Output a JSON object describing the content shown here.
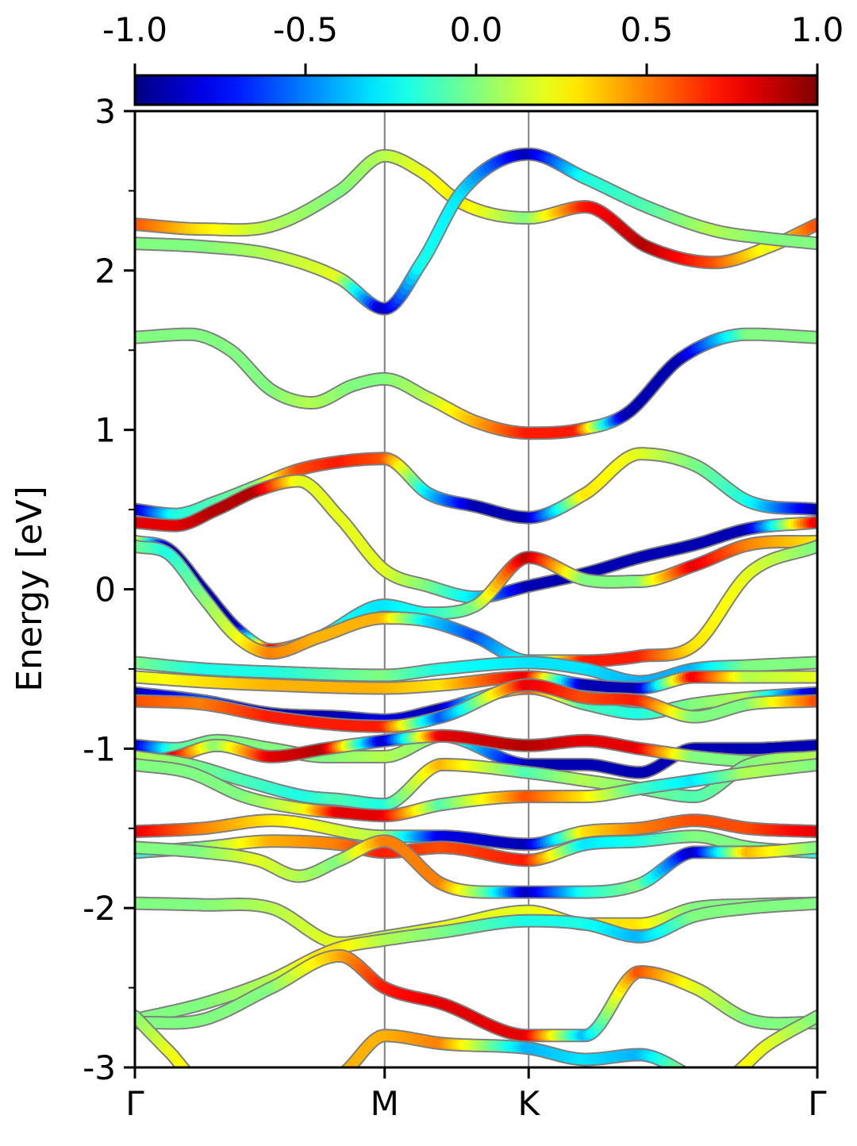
{
  "chart_data": {
    "type": "line",
    "ylabel": "Energy [eV]",
    "ylim": [
      -3,
      3
    ],
    "yticks": [
      -3,
      -2,
      -1,
      0,
      1,
      2,
      3
    ],
    "ytick_labels": [
      "-3",
      "-2",
      "-1",
      "0",
      "1",
      "2",
      "3"
    ],
    "yminor_ticks": [
      -2.5,
      -1.5,
      -0.5,
      0.5,
      1.5,
      2.5
    ],
    "kpath": {
      "labels": [
        "Γ",
        "M",
        "K",
        "Γ"
      ],
      "positions": [
        0,
        0.366,
        0.577,
        1.0
      ]
    },
    "colorbar": {
      "colormap": "jet",
      "range": [
        -1.0,
        1.0
      ],
      "ticks": [
        -1.0,
        -0.5,
        0.0,
        0.5,
        1.0
      ],
      "tick_labels": [
        "-1.0",
        "-0.5",
        "0.0",
        "0.5",
        "1.0"
      ],
      "position": "top"
    },
    "band_outline_color": "#7f7f7f",
    "kline_color": "#808080",
    "series": [
      {
        "x": [
          0,
          0.1,
          0.2,
          0.3,
          0.366,
          0.42,
          0.48,
          0.577,
          0.66,
          0.75,
          0.85,
          0.93,
          1.0
        ],
        "y": [
          2.29,
          2.26,
          2.28,
          2.5,
          2.72,
          2.62,
          2.42,
          2.33,
          2.4,
          2.15,
          2.05,
          2.15,
          2.29
        ],
        "c": [
          0.6,
          0.3,
          0.1,
          0.0,
          0.1,
          0.2,
          0.3,
          0.0,
          0.7,
          0.9,
          0.6,
          0.2,
          0.6
        ]
      },
      {
        "x": [
          0,
          0.1,
          0.2,
          0.3,
          0.366,
          0.42,
          0.48,
          0.577,
          0.66,
          0.75,
          0.85,
          0.93,
          1.0
        ],
        "y": [
          2.17,
          2.15,
          2.1,
          1.95,
          1.76,
          2.05,
          2.5,
          2.73,
          2.58,
          2.4,
          2.25,
          2.2,
          2.17
        ],
        "c": [
          0.0,
          0.0,
          0.1,
          0.2,
          -0.9,
          -0.2,
          -0.3,
          -0.9,
          -0.2,
          -0.1,
          0.1,
          0.0,
          0.0
        ]
      },
      {
        "x": [
          0,
          0.08,
          0.14,
          0.2,
          0.26,
          0.32,
          0.366,
          0.43,
          0.5,
          0.577,
          0.65,
          0.72,
          0.8,
          0.9,
          1.0
        ],
        "y": [
          1.58,
          1.6,
          1.5,
          1.25,
          1.17,
          1.28,
          1.32,
          1.2,
          1.05,
          0.98,
          1.0,
          1.1,
          1.45,
          1.6,
          1.58
        ],
        "c": [
          0.0,
          0.0,
          0.0,
          0.0,
          0.1,
          0.0,
          0.0,
          0.1,
          0.4,
          0.7,
          0.7,
          -0.9,
          -0.9,
          0.0,
          0.0
        ]
      },
      {
        "x": [
          0,
          0.06,
          0.12,
          0.18,
          0.24,
          0.3,
          0.366,
          0.43,
          0.5,
          0.577,
          0.66,
          0.74,
          0.82,
          0.9,
          1.0
        ],
        "y": [
          0.5,
          0.47,
          0.55,
          0.65,
          0.75,
          0.8,
          0.82,
          0.6,
          0.52,
          0.45,
          0.6,
          0.85,
          0.78,
          0.55,
          0.5
        ],
        "c": [
          -0.9,
          -0.2,
          -0.1,
          0.0,
          0.6,
          0.7,
          0.6,
          -0.3,
          -0.9,
          -0.9,
          0.3,
          0.2,
          0.0,
          -0.2,
          -0.9
        ]
      },
      {
        "x": [
          0,
          0.06,
          0.12,
          0.18,
          0.24,
          0.3,
          0.366,
          0.43,
          0.5,
          0.577,
          0.66,
          0.74,
          0.82,
          0.9,
          1.0
        ],
        "y": [
          0.42,
          0.4,
          0.5,
          0.62,
          0.68,
          0.45,
          0.12,
          0.02,
          -0.05,
          0.02,
          0.1,
          0.2,
          0.28,
          0.38,
          0.42
        ],
        "c": [
          0.8,
          0.8,
          0.9,
          0.9,
          0.2,
          0.2,
          0.2,
          0.0,
          -0.3,
          -0.9,
          -0.9,
          -0.9,
          -0.9,
          -0.9,
          0.8
        ]
      },
      {
        "x": [
          0,
          0.05,
          0.1,
          0.15,
          0.2,
          0.27,
          0.366,
          0.43,
          0.5,
          0.577,
          0.66,
          0.74,
          0.82,
          0.9,
          1.0
        ],
        "y": [
          0.3,
          0.25,
          0.0,
          -0.25,
          -0.38,
          -0.3,
          -0.1,
          -0.15,
          -0.1,
          0.2,
          0.06,
          0.05,
          0.15,
          0.28,
          0.3
        ],
        "c": [
          0.3,
          -0.9,
          -0.9,
          -0.9,
          0.8,
          -0.2,
          -0.3,
          -0.2,
          0.0,
          0.9,
          0.0,
          0.0,
          0.8,
          0.5,
          0.3
        ]
      },
      {
        "x": [
          0,
          0.05,
          0.1,
          0.15,
          0.2,
          0.27,
          0.366,
          0.43,
          0.5,
          0.577,
          0.66,
          0.74,
          0.82,
          0.9,
          1.0
        ],
        "y": [
          0.27,
          0.22,
          -0.05,
          -0.3,
          -0.4,
          -0.3,
          -0.18,
          -0.2,
          -0.3,
          -0.45,
          -0.45,
          -0.42,
          -0.35,
          0.1,
          0.27
        ],
        "c": [
          0.0,
          -0.2,
          0.0,
          0.2,
          0.5,
          0.4,
          0.4,
          -0.3,
          -0.6,
          -0.2,
          0.7,
          0.7,
          0.3,
          0.2,
          0.0
        ]
      },
      {
        "x": [
          0,
          0.1,
          0.2,
          0.366,
          0.45,
          0.577,
          0.66,
          0.74,
          0.82,
          0.9,
          1.0
        ],
        "y": [
          -0.46,
          -0.5,
          -0.52,
          -0.54,
          -0.5,
          -0.46,
          -0.5,
          -0.58,
          -0.5,
          -0.48,
          -0.46
        ],
        "c": [
          0.0,
          -0.2,
          -0.2,
          0.0,
          -0.2,
          -0.3,
          -0.3,
          -0.4,
          -0.4,
          0.0,
          0.0
        ]
      },
      {
        "x": [
          0,
          0.1,
          0.2,
          0.366,
          0.45,
          0.577,
          0.66,
          0.74,
          0.82,
          0.9,
          1.0
        ],
        "y": [
          -0.55,
          -0.58,
          -0.6,
          -0.62,
          -0.6,
          -0.55,
          -0.6,
          -0.62,
          -0.55,
          -0.55,
          -0.55
        ],
        "c": [
          0.2,
          0.3,
          0.4,
          0.4,
          0.3,
          0.8,
          -0.9,
          -0.9,
          0.8,
          0.1,
          0.2
        ]
      },
      {
        "x": [
          0,
          0.1,
          0.2,
          0.3,
          0.366,
          0.45,
          0.577,
          0.66,
          0.74,
          0.82,
          0.9,
          1.0
        ],
        "y": [
          -0.65,
          -0.7,
          -0.78,
          -0.8,
          -0.82,
          -0.75,
          -0.62,
          -0.72,
          -0.78,
          -0.72,
          -0.68,
          -0.65
        ],
        "c": [
          -0.9,
          -0.6,
          -0.9,
          -0.9,
          -0.8,
          -0.9,
          0.6,
          -0.1,
          -0.2,
          0.0,
          0.1,
          -0.9
        ]
      },
      {
        "x": [
          0,
          0.1,
          0.2,
          0.3,
          0.366,
          0.45,
          0.577,
          0.66,
          0.74,
          0.82,
          0.9,
          1.0
        ],
        "y": [
          -0.7,
          -0.72,
          -0.8,
          -0.85,
          -0.86,
          -0.8,
          -0.6,
          -0.68,
          -0.7,
          -0.8,
          -0.72,
          -0.7
        ],
        "c": [
          0.6,
          0.5,
          0.7,
          0.7,
          0.7,
          -0.6,
          0.8,
          0.6,
          0.7,
          0.0,
          0.0,
          0.6
        ]
      },
      {
        "x": [
          0,
          0.06,
          0.12,
          0.2,
          0.28,
          0.366,
          0.45,
          0.577,
          0.66,
          0.74,
          0.82,
          0.9,
          1.0
        ],
        "y": [
          -0.98,
          -1.0,
          -0.95,
          -1.0,
          -1.05,
          -1.05,
          -0.92,
          -1.1,
          -1.1,
          -1.15,
          -1.0,
          -1.0,
          -0.98
        ],
        "c": [
          -0.9,
          -0.1,
          0.0,
          0.0,
          0.0,
          0.1,
          0.0,
          -0.9,
          -0.9,
          -0.9,
          -0.9,
          -0.9,
          -0.9
        ]
      },
      {
        "x": [
          0,
          0.06,
          0.12,
          0.2,
          0.28,
          0.366,
          0.45,
          0.577,
          0.66,
          0.74,
          0.82,
          0.9,
          1.0
        ],
        "y": [
          -1.1,
          -1.05,
          -0.98,
          -1.05,
          -1.0,
          -0.95,
          -0.92,
          -0.98,
          -0.95,
          -1.0,
          -1.05,
          -1.08,
          -1.1
        ],
        "c": [
          0.8,
          0.8,
          0.0,
          0.8,
          0.9,
          -0.9,
          0.8,
          0.9,
          0.8,
          0.8,
          0.0,
          0.0,
          0.8
        ]
      },
      {
        "x": [
          0,
          0.08,
          0.16,
          0.25,
          0.3,
          0.366,
          0.45,
          0.577,
          0.66,
          0.74,
          0.82,
          0.9,
          1.0
        ],
        "y": [
          -1.05,
          -1.1,
          -1.2,
          -1.3,
          -1.32,
          -1.35,
          -1.1,
          -1.15,
          -1.2,
          -1.25,
          -1.3,
          -1.1,
          -1.05
        ],
        "c": [
          0.1,
          0.0,
          -0.1,
          -0.2,
          -0.1,
          -0.2,
          0.4,
          -0.1,
          0.1,
          0.0,
          -0.1,
          0.0,
          0.1
        ]
      },
      {
        "x": [
          0,
          0.08,
          0.16,
          0.25,
          0.3,
          0.366,
          0.45,
          0.577,
          0.66,
          0.74,
          0.82,
          0.9,
          1.0
        ],
        "y": [
          -1.1,
          -1.15,
          -1.3,
          -1.38,
          -1.4,
          -1.42,
          -1.35,
          -1.3,
          -1.3,
          -1.25,
          -1.2,
          -1.15,
          -1.1
        ],
        "c": [
          0.0,
          0.0,
          0.0,
          0.2,
          0.8,
          0.8,
          -0.1,
          0.6,
          0.3,
          -0.1,
          -0.3,
          0.1,
          0.0
        ]
      },
      {
        "x": [
          0,
          0.1,
          0.2,
          0.366,
          0.45,
          0.577,
          0.66,
          0.74,
          0.82,
          0.9,
          1.0
        ],
        "y": [
          -1.52,
          -1.5,
          -1.45,
          -1.55,
          -1.55,
          -1.6,
          -1.52,
          -1.5,
          -1.45,
          -1.5,
          -1.52
        ],
        "c": [
          0.8,
          0.5,
          0.3,
          0.1,
          -0.8,
          -0.9,
          0.3,
          0.5,
          0.6,
          0.6,
          0.8
        ]
      },
      {
        "x": [
          0,
          0.1,
          0.2,
          0.3,
          0.366,
          0.45,
          0.577,
          0.66,
          0.74,
          0.82,
          0.9,
          1.0
        ],
        "y": [
          -1.65,
          -1.62,
          -1.58,
          -1.6,
          -1.65,
          -1.62,
          -1.7,
          -1.6,
          -1.58,
          -1.55,
          -1.62,
          -1.65
        ],
        "c": [
          -0.2,
          0.0,
          0.4,
          0.5,
          0.7,
          0.6,
          0.7,
          -0.3,
          -0.2,
          0.0,
          0.0,
          -0.2
        ]
      },
      {
        "x": [
          0,
          0.1,
          0.18,
          0.24,
          0.3,
          0.366,
          0.45,
          0.52,
          0.577,
          0.66,
          0.74,
          0.82,
          0.9,
          1.0
        ],
        "y": [
          -1.62,
          -1.65,
          -1.7,
          -1.8,
          -1.7,
          -1.58,
          -1.85,
          -1.9,
          -1.9,
          -1.9,
          -1.85,
          -1.65,
          -1.65,
          -1.62
        ],
        "c": [
          0.0,
          0.0,
          0.2,
          0.1,
          0.0,
          0.5,
          0.5,
          -0.1,
          -0.9,
          -0.2,
          0.0,
          -0.9,
          0.4,
          0.0
        ]
      },
      {
        "x": [
          0,
          0.1,
          0.2,
          0.3,
          0.366,
          0.45,
          0.577,
          0.66,
          0.74,
          0.82,
          0.9,
          1.0
        ],
        "y": [
          -1.97,
          -1.98,
          -2.0,
          -2.22,
          -2.18,
          -2.12,
          -2.02,
          -2.1,
          -2.1,
          -2.0,
          -1.98,
          -1.97
        ],
        "c": [
          0.0,
          0.0,
          0.1,
          0.2,
          0.1,
          0.2,
          0.2,
          0.3,
          0.3,
          0.0,
          0.0,
          0.0
        ]
      },
      {
        "x": [
          0,
          0.1,
          0.2,
          0.27,
          0.3,
          0.366,
          0.45,
          0.577,
          0.66,
          0.74,
          0.82,
          0.9,
          1.0
        ],
        "y": [
          -2.7,
          -2.6,
          -2.45,
          -2.3,
          -2.25,
          -2.2,
          -2.15,
          -2.08,
          -2.1,
          -2.18,
          -2.05,
          -2.0,
          -1.97
        ],
        "c": [
          0.0,
          0.0,
          0.1,
          0.3,
          0.3,
          0.1,
          0.0,
          -0.2,
          -0.2,
          -0.4,
          0.0,
          0.0,
          0.0
        ]
      },
      {
        "x": [
          0,
          0.1,
          0.2,
          0.3,
          0.366,
          0.45,
          0.577,
          0.66,
          0.74,
          0.82,
          0.9,
          1.0
        ],
        "y": [
          -2.72,
          -2.7,
          -2.5,
          -2.3,
          -2.5,
          -2.6,
          -2.8,
          -2.8,
          -2.4,
          -2.5,
          -2.7,
          -2.72
        ],
        "c": [
          0.0,
          0.0,
          0.0,
          0.4,
          0.7,
          0.8,
          0.8,
          -0.4,
          0.6,
          0.2,
          0.0,
          0.0
        ]
      },
      {
        "x": [
          0,
          0.05,
          0.1,
          0.3,
          0.366,
          0.45,
          0.577,
          0.66,
          0.74,
          0.85,
          0.93,
          1.0
        ],
        "y": [
          -2.68,
          -2.9,
          -3.1,
          -3.05,
          -2.8,
          -2.85,
          -2.88,
          -2.95,
          -2.92,
          -3.1,
          -2.85,
          -2.68
        ],
        "c": [
          0.0,
          0.2,
          0.3,
          0.4,
          0.4,
          0.5,
          -0.4,
          -0.3,
          -0.4,
          0.3,
          0.2,
          0.0
        ]
      }
    ]
  }
}
